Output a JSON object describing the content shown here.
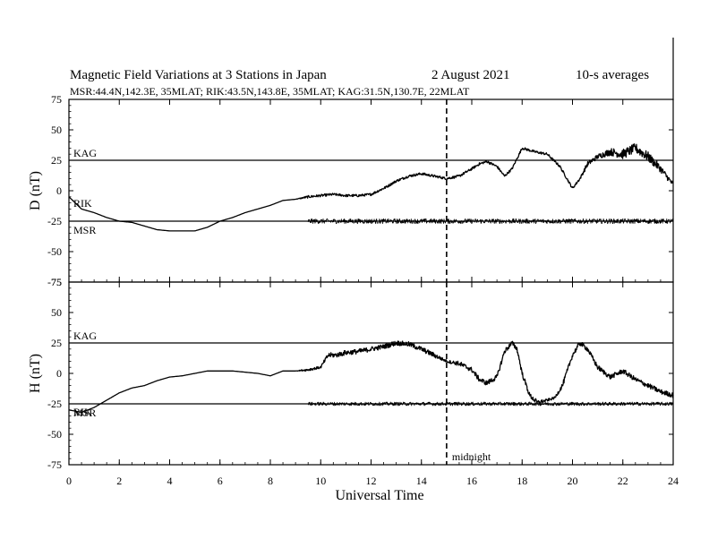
{
  "title": {
    "main": "Magnetic Field Variations at 3 Stations in Japan",
    "date": "2   August   2021",
    "averaging": "10-s averages",
    "stations_line": "MSR:44.4N,142.3E, 35MLAT;  RIK:43.5N,143.8E, 35MLAT;  KAG:31.5N,130.7E, 22MLAT"
  },
  "xlabel": "Universal Time",
  "annotation": "midnight",
  "chart_data": [
    {
      "type": "line",
      "panel": "D",
      "ylabel": "D (nT)",
      "ylim": [
        -75,
        75
      ],
      "xlim": [
        0,
        24
      ],
      "yticks": [
        -75,
        -50,
        -25,
        0,
        25,
        50,
        75
      ],
      "xticks": [
        0,
        2,
        4,
        6,
        8,
        10,
        12,
        14,
        16,
        18,
        20,
        22,
        24
      ],
      "baselines": [
        {
          "name": "KAG",
          "y": 25
        },
        {
          "name": "MSR",
          "y": -25
        }
      ],
      "extra_labels": [
        "RIK"
      ],
      "midnight_ut": 15,
      "series": [
        {
          "name": "KAG",
          "x": [
            0,
            0.5,
            1,
            1.5,
            2,
            2.5,
            3,
            3.5,
            4,
            4.5,
            5,
            5.5,
            6,
            6.5,
            7,
            7.5,
            8,
            8.5,
            9,
            9.5,
            10,
            10.5,
            11,
            11.5,
            12,
            12.3,
            12.6,
            13,
            13.5,
            14,
            14.5,
            15,
            15.5,
            16,
            16.3,
            16.6,
            17,
            17.3,
            17.6,
            18,
            18.5,
            19,
            19.5,
            20,
            20.3,
            20.6,
            21,
            21.5,
            22,
            22.5,
            23,
            23.5,
            24
          ],
          "y": [
            -5,
            -15,
            -18,
            -22,
            -25,
            -26,
            -29,
            -32,
            -33,
            -33,
            -33,
            -30,
            -25,
            -22,
            -18,
            -15,
            -12,
            -8,
            -7,
            -5,
            -4,
            -3,
            -4,
            -4,
            -3,
            0,
            3,
            8,
            12,
            14,
            12,
            10,
            12,
            18,
            22,
            24,
            20,
            12,
            18,
            35,
            32,
            30,
            20,
            2,
            10,
            22,
            28,
            32,
            30,
            35,
            28,
            18,
            5
          ],
          "noise": [
            0,
            0,
            0,
            0,
            0,
            0,
            0,
            0,
            0,
            0,
            0,
            0,
            0,
            0,
            0,
            0,
            0,
            0,
            0,
            1,
            1,
            1,
            1,
            1,
            1,
            1,
            1,
            1,
            1,
            1,
            1,
            1,
            1,
            1,
            1,
            1,
            1,
            1,
            1,
            1,
            1,
            1,
            1,
            1,
            1,
            2,
            2,
            3,
            4,
            4,
            4,
            3,
            2
          ]
        },
        {
          "name": "MSR",
          "x": [
            9.5,
            24
          ],
          "y": [
            -25,
            -25
          ],
          "noise_amplitude": 2
        }
      ]
    },
    {
      "type": "line",
      "panel": "H",
      "ylabel": "H (nT)",
      "ylim": [
        -75,
        75
      ],
      "xlim": [
        0,
        24
      ],
      "yticks": [
        -75,
        -50,
        -25,
        0,
        25,
        50,
        75
      ],
      "xticks": [
        0,
        2,
        4,
        6,
        8,
        10,
        12,
        14,
        16,
        18,
        20,
        22,
        24
      ],
      "baselines": [
        {
          "name": "KAG",
          "y": 25
        },
        {
          "name": "MSR",
          "y": -25
        }
      ],
      "extra_labels": [
        "RIK"
      ],
      "midnight_ut": 15,
      "series": [
        {
          "name": "KAG",
          "x": [
            0,
            0.5,
            1,
            1.5,
            2,
            2.5,
            3,
            3.5,
            4,
            4.5,
            5,
            5.5,
            6,
            6.5,
            7,
            7.5,
            8,
            8.5,
            9,
            9.5,
            10,
            10.3,
            10.6,
            11,
            11.5,
            12,
            12.5,
            13,
            13.5,
            14,
            14.5,
            15,
            15.5,
            16,
            16.3,
            16.6,
            17,
            17.3,
            17.6,
            17.8,
            18,
            18.3,
            18.6,
            19,
            19.3,
            19.6,
            20,
            20.3,
            20.6,
            21,
            21.5,
            22,
            22.5,
            23,
            23.5,
            24
          ],
          "y": [
            -30,
            -32,
            -28,
            -22,
            -16,
            -12,
            -10,
            -6,
            -3,
            -2,
            0,
            2,
            2,
            2,
            1,
            0,
            -2,
            2,
            2,
            3,
            5,
            15,
            15,
            17,
            18,
            20,
            22,
            25,
            24,
            20,
            15,
            10,
            8,
            3,
            -5,
            -8,
            -3,
            18,
            25,
            20,
            0,
            -18,
            -24,
            -22,
            -20,
            -10,
            15,
            25,
            20,
            5,
            -3,
            2,
            -5,
            -10,
            -15,
            -18
          ],
          "noise": [
            0,
            0,
            0,
            0,
            0,
            0,
            0,
            0,
            0,
            0,
            0,
            0,
            0,
            0,
            0,
            0,
            0,
            0,
            0,
            1,
            1,
            2,
            2,
            2,
            2,
            2,
            2,
            2,
            2,
            2,
            2,
            1,
            2,
            2,
            2,
            2,
            2,
            2,
            2,
            2,
            2,
            2,
            2,
            1,
            1,
            2,
            2,
            2,
            2,
            2,
            2,
            2,
            2,
            2,
            2,
            2
          ]
        },
        {
          "name": "MSR",
          "x": [
            9.5,
            24
          ],
          "y": [
            -25,
            -25
          ],
          "noise_amplitude": 1.5
        }
      ]
    }
  ]
}
